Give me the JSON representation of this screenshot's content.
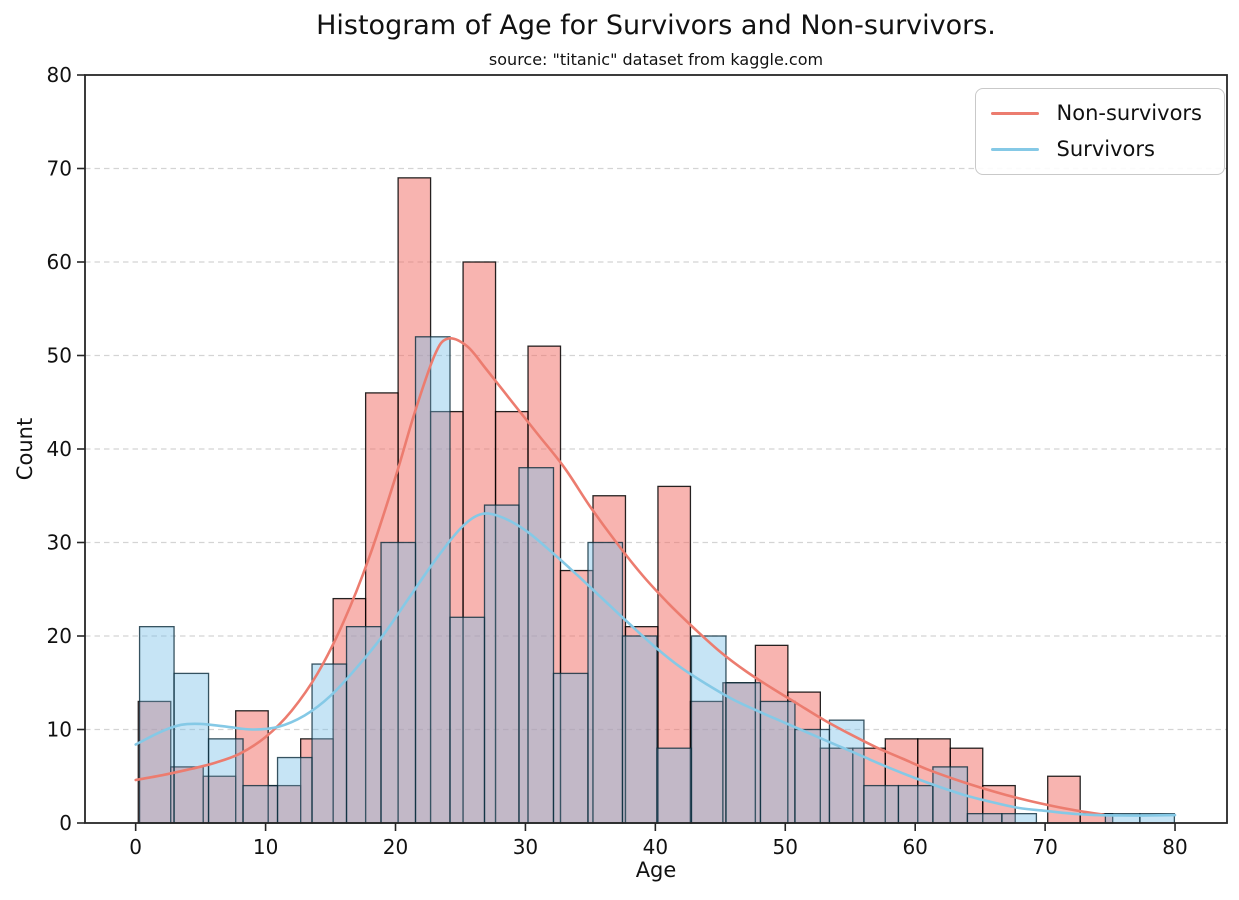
{
  "chart": {
    "title": "Histogram of Age for Survivors and Non-survivors.",
    "subtitle": "source: \"titanic\" dataset from kaggle.com",
    "xlabel": "Age",
    "ylabel": "Count",
    "legend": [
      {
        "label": "Non-survivors",
        "color": "#ec7c6f"
      },
      {
        "label": "Survivors",
        "color": "#85c9e6"
      }
    ]
  },
  "chart_data": {
    "type": "histogram+kde",
    "title": "Histogram of Age for Survivors and Non-survivors.",
    "subtitle": "source: \"titanic\" dataset from kaggle.com",
    "xlabel": "Age",
    "ylabel": "Count",
    "xlim": [
      -3.9,
      84.0
    ],
    "ylim": [
      0,
      80
    ],
    "x_ticks": [
      0,
      10,
      20,
      30,
      40,
      50,
      60,
      70,
      80
    ],
    "y_ticks": [
      0,
      10,
      20,
      30,
      40,
      50,
      60,
      70,
      80
    ],
    "grid": "horizontal-dashed",
    "gridline_color": "#d4d4d4",
    "spine_color": "#262626",
    "legend_position": "upper right",
    "series": [
      {
        "name": "Non-survivors",
        "bin_start": 0.2,
        "bin_width": 2.5,
        "counts": [
          13,
          6,
          5,
          12,
          4,
          9,
          24,
          46,
          69,
          44,
          60,
          44,
          51,
          27,
          35,
          21,
          36,
          13,
          15,
          19,
          14,
          8,
          8,
          9,
          9,
          8,
          4,
          0,
          5,
          1
        ],
        "fill_color": "rgba(241,106,97,0.5)",
        "edge_color": "rgba(0,0,0,0.85)",
        "line_color": "#ec7c6f",
        "kde": [
          [
            0,
            4.6
          ],
          [
            2,
            5.1
          ],
          [
            4,
            5.7
          ],
          [
            6,
            6.4
          ],
          [
            8,
            7.4
          ],
          [
            10,
            9.2
          ],
          [
            12,
            12
          ],
          [
            14,
            16
          ],
          [
            16,
            21.5
          ],
          [
            18,
            28.5
          ],
          [
            20,
            37
          ],
          [
            21.5,
            44
          ],
          [
            23,
            50
          ],
          [
            24,
            51.8
          ],
          [
            25.5,
            51
          ],
          [
            27,
            48.5
          ],
          [
            29,
            45
          ],
          [
            31,
            41.5
          ],
          [
            33,
            38
          ],
          [
            35,
            33.8
          ],
          [
            37,
            30
          ],
          [
            39,
            26.5
          ],
          [
            41,
            23.5
          ],
          [
            43,
            20.8
          ],
          [
            45,
            18.3
          ],
          [
            47,
            16.2
          ],
          [
            49,
            14.4
          ],
          [
            51,
            12.7
          ],
          [
            53,
            11
          ],
          [
            55,
            9.5
          ],
          [
            57,
            8.1
          ],
          [
            59,
            6.9
          ],
          [
            61,
            5.7
          ],
          [
            63,
            4.7
          ],
          [
            65,
            3.8
          ],
          [
            67,
            3
          ],
          [
            69,
            2.3
          ],
          [
            71,
            1.7
          ],
          [
            73,
            1.2
          ],
          [
            74.5,
            0.9
          ]
        ]
      },
      {
        "name": "Survivors",
        "bin_start": 0.3,
        "bin_width": 2.655,
        "counts": [
          21,
          16,
          9,
          4,
          7,
          17,
          21,
          30,
          52,
          22,
          34,
          38,
          16,
          30,
          20,
          8,
          20,
          15,
          13,
          10,
          11,
          4,
          4,
          6,
          1,
          1,
          0,
          0,
          1,
          1
        ],
        "fill_color": "rgba(120,190,230,0.42)",
        "edge_color": "rgba(10,42,58,0.8)",
        "line_color": "#85c9e6",
        "kde": [
          [
            0,
            8.4
          ],
          [
            2,
            9.8
          ],
          [
            3.5,
            10.5
          ],
          [
            5,
            10.6
          ],
          [
            7,
            10.3
          ],
          [
            9,
            10
          ],
          [
            11,
            10.3
          ],
          [
            13,
            11.5
          ],
          [
            15,
            13.6
          ],
          [
            17,
            16.6
          ],
          [
            19,
            20
          ],
          [
            21,
            24
          ],
          [
            23,
            28
          ],
          [
            25,
            31.5
          ],
          [
            26.5,
            33
          ],
          [
            28,
            32.8
          ],
          [
            30,
            31.3
          ],
          [
            32,
            29
          ],
          [
            34,
            26.5
          ],
          [
            36,
            23.9
          ],
          [
            38,
            21.3
          ],
          [
            40,
            18.8
          ],
          [
            42,
            16.6
          ],
          [
            44,
            14.8
          ],
          [
            46,
            13.2
          ],
          [
            48,
            11.9
          ],
          [
            50,
            10.7
          ],
          [
            52,
            9.5
          ],
          [
            54,
            8.3
          ],
          [
            56,
            7.1
          ],
          [
            58,
            5.9
          ],
          [
            60,
            4.8
          ],
          [
            62,
            3.8
          ],
          [
            64,
            2.9
          ],
          [
            66,
            2.2
          ],
          [
            68,
            1.6
          ],
          [
            70,
            1.3
          ],
          [
            72,
            1
          ],
          [
            74,
            0.85
          ],
          [
            76,
            0.8
          ],
          [
            78,
            0.8
          ],
          [
            80,
            0.85
          ]
        ]
      }
    ]
  }
}
